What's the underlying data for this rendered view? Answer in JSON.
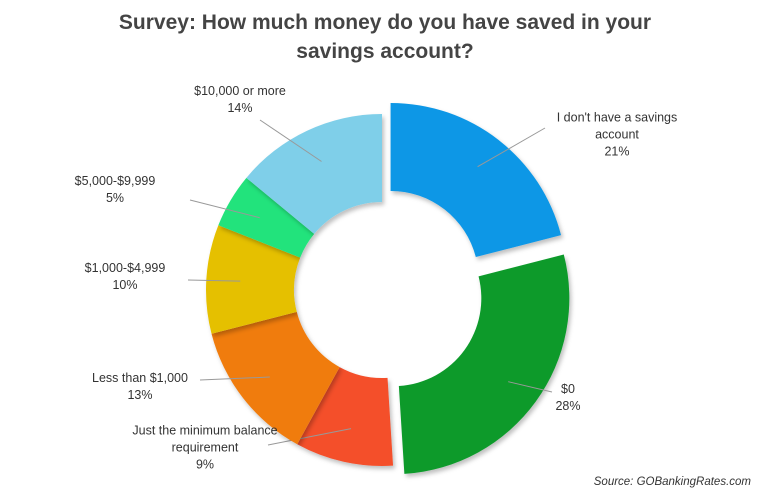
{
  "chart_data": {
    "type": "donut",
    "title": "Survey: How much money do you have saved in your savings account?",
    "categories": [
      "I don't have a savings account",
      "$0",
      "Just the minimum balance requirement",
      "Less than $1,000",
      "$1,000-$4,999",
      "$5,000-$9,999",
      "$10,000 or more"
    ],
    "values": [
      21,
      28,
      9,
      13,
      10,
      5,
      14
    ],
    "value_labels": [
      "21%",
      "28%",
      "9%",
      "13%",
      "10%",
      "5%",
      "14%"
    ],
    "colors": [
      "#1197e6",
      "#0a9a2c",
      "#f44f2c",
      "#f07c0c",
      "#e5c000",
      "#22e37c",
      "#7fcfe9"
    ],
    "source": "Source: GOBankingRates.com"
  }
}
